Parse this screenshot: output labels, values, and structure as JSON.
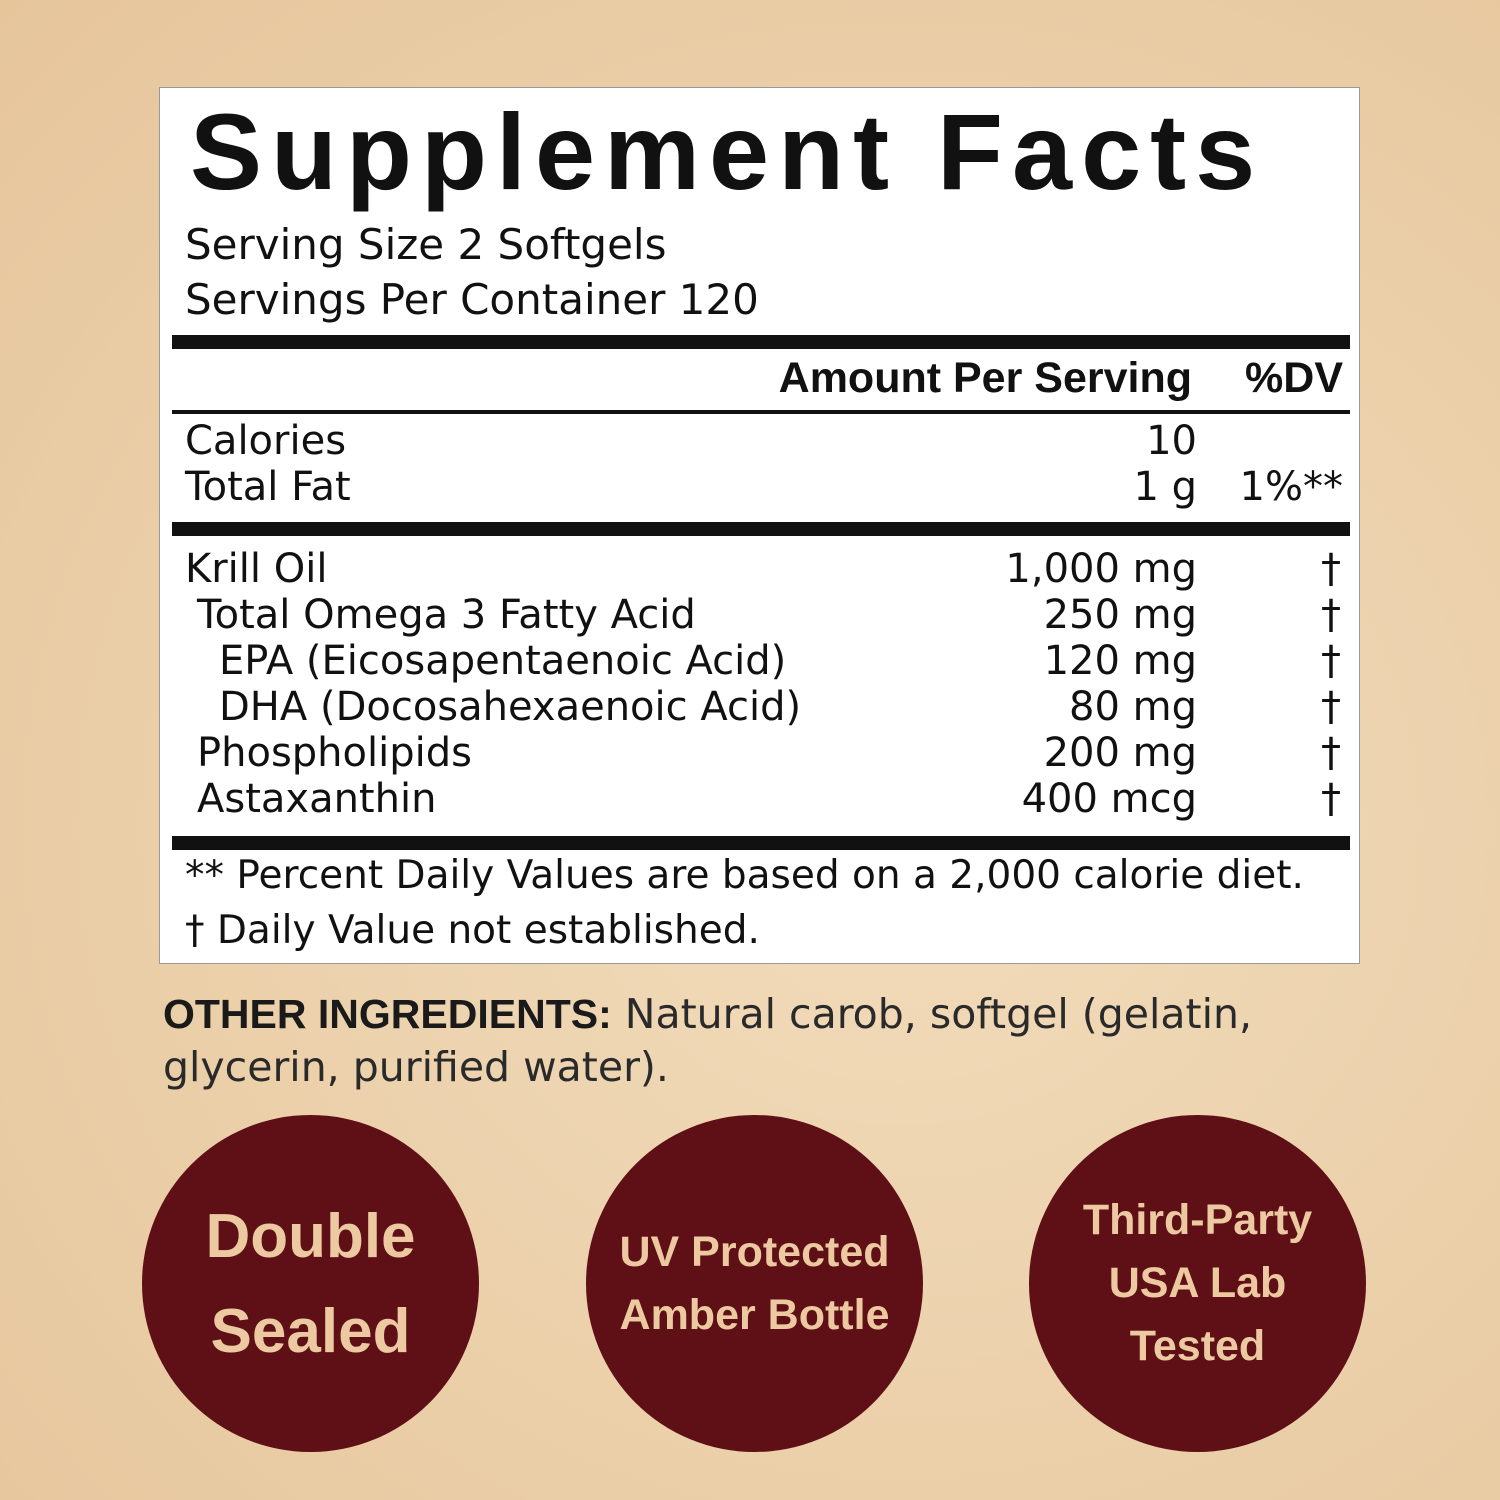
{
  "label": {
    "title": "Supplement Facts",
    "serving_size": "Serving Size 2 Softgels",
    "servings_per_container": "Servings Per Container 120",
    "header_amount": "Amount Per Serving",
    "header_dv": "%DV",
    "nutrients": [
      {
        "name": "Calories",
        "amount": "10",
        "dv": ""
      },
      {
        "name": "Total Fat",
        "amount": "1 g",
        "dv": "1%**"
      }
    ],
    "ingredients": [
      {
        "name": "Krill Oil",
        "amount": "1,000 mg",
        "dv": "†"
      },
      {
        "name": "Total Omega 3 Fatty Acid",
        "amount": "250 mg",
        "dv": "†"
      },
      {
        "name": "EPA (Eicosapentaenoic Acid)",
        "amount": "120 mg",
        "dv": "†"
      },
      {
        "name": "DHA (Docosahexaenoic Acid)",
        "amount": "80 mg",
        "dv": "†"
      },
      {
        "name": "Phospholipids",
        "amount": "200 mg",
        "dv": "†"
      },
      {
        "name": "Astaxanthin",
        "amount": "400 mcg",
        "dv": "†"
      }
    ],
    "footnote1": "** Percent Daily Values are based on a 2,000 calorie diet.",
    "footnote2": "† Daily Value not established."
  },
  "other_ingredients": {
    "heading": "OTHER INGREDIENTS:",
    "text": " Natural carob, softgel (gelatin, glycerin, purified water)."
  },
  "badges": [
    {
      "lines": [
        "Double",
        "Sealed"
      ]
    },
    {
      "lines": [
        "UV Protected",
        "Amber Bottle"
      ]
    },
    {
      "lines": [
        "Third-Party",
        "USA Lab",
        "Tested"
      ]
    }
  ],
  "colors": {
    "badge": "#5e1016",
    "badge_text": "#ecc9a0",
    "background": "#ecd2ad"
  }
}
